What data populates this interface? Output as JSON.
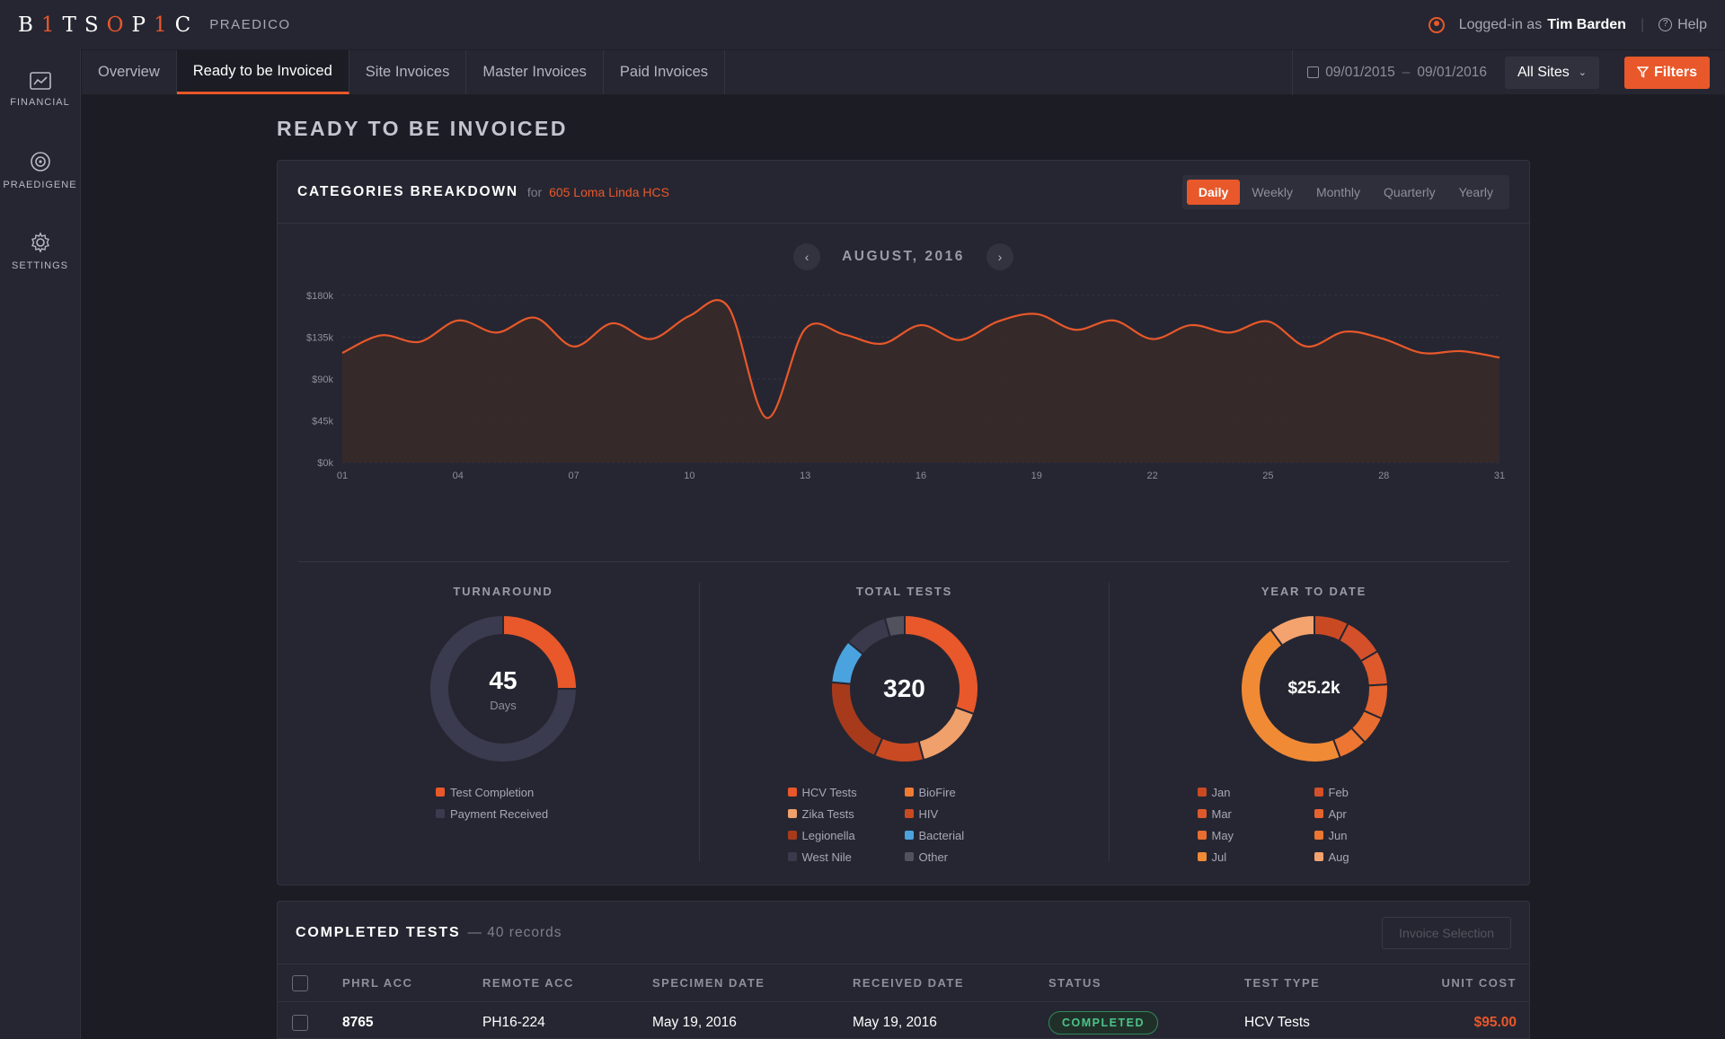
{
  "brand": {
    "logo_pre": "B",
    "logo_i1": "1",
    "logo_mid": "TS",
    "logo_o": "O",
    "logo_p": "P",
    "logo_i2": "1",
    "logo_post": "C",
    "product": "PRAEDICO"
  },
  "user": {
    "prefix": "Logged-in as",
    "name": "Tim Barden",
    "help": "Help"
  },
  "sidebar": {
    "items": [
      {
        "label": "FINANCIAL",
        "icon": "chart-icon"
      },
      {
        "label": "PRAEDIGENE",
        "icon": "target-icon"
      },
      {
        "label": "SETTINGS",
        "icon": "gear-icon"
      }
    ]
  },
  "tabs": [
    {
      "label": "Overview"
    },
    {
      "label": "Ready to be Invoiced",
      "active": true
    },
    {
      "label": "Site Invoices"
    },
    {
      "label": "Master Invoices"
    },
    {
      "label": "Paid Invoices"
    }
  ],
  "daterange": {
    "from": "09/01/2015",
    "sep": "–",
    "to": "09/01/2016"
  },
  "site_select": "All Sites",
  "filters_label": "Filters",
  "page_title": "READY TO BE INVOICED",
  "breakdown": {
    "title": "CATEGORIES BREAKDOWN",
    "for_label": "for",
    "location": "605 Loma Linda HCS",
    "periods": [
      "Daily",
      "Weekly",
      "Monthly",
      "Quarterly",
      "Yearly"
    ],
    "active_period": "Daily",
    "month": "AUGUST, 2016"
  },
  "chart_data": [
    {
      "type": "area",
      "x": [
        "01",
        "02",
        "03",
        "04",
        "05",
        "06",
        "07",
        "08",
        "09",
        "10",
        "11",
        "12",
        "13",
        "14",
        "15",
        "16",
        "17",
        "18",
        "19",
        "20",
        "21",
        "22",
        "23",
        "24",
        "25",
        "26",
        "27",
        "28",
        "29",
        "30",
        "31"
      ],
      "values": [
        118,
        137,
        130,
        153,
        140,
        156,
        125,
        150,
        133,
        158,
        168,
        48,
        144,
        138,
        128,
        148,
        132,
        152,
        160,
        143,
        153,
        133,
        148,
        140,
        152,
        125,
        141,
        133,
        118,
        120,
        113
      ],
      "y_ticks": [
        "$0k",
        "$45k",
        "$90k",
        "$135k",
        "$180k"
      ],
      "x_ticks": [
        "01",
        "04",
        "07",
        "10",
        "13",
        "16",
        "19",
        "22",
        "25",
        "28",
        "31"
      ],
      "ylim": [
        0,
        180
      ],
      "grid": true,
      "colors": {
        "line": "#e8582a",
        "fill": "#3a2a28"
      }
    },
    {
      "type": "pie",
      "title": "TURNAROUND",
      "center_value": "45",
      "center_label": "Days",
      "categories": [
        "Test Completion",
        "Payment Received"
      ],
      "values": [
        25,
        75
      ],
      "colors": [
        "#e8582a",
        "#3b3b4f"
      ]
    },
    {
      "type": "pie",
      "title": "TOTAL TESTS",
      "center_value": "320",
      "categories": [
        "HCV Tests",
        "BioFire",
        "Zika Tests",
        "HIV",
        "Legionella",
        "Bacterial",
        "West Nile",
        "Other"
      ],
      "values": [
        70,
        0,
        35,
        25,
        45,
        22,
        22,
        10
      ],
      "colors": [
        "#e8582a",
        "#ef7b33",
        "#f0a06a",
        "#c94a22",
        "#a83a1c",
        "#4aa3df",
        "#3a3a4c",
        "#52525e"
      ]
    },
    {
      "type": "pie",
      "title": "YEAR TO DATE",
      "center_value": "$25.2k",
      "categories": [
        "Jan",
        "Feb",
        "Mar",
        "Apr",
        "May",
        "Jun",
        "Jul",
        "Aug"
      ],
      "values": [
        3,
        3.5,
        3,
        3,
        2.5,
        2.5,
        18,
        4
      ],
      "colors": [
        "#c94a22",
        "#d4502a",
        "#de5a2c",
        "#e5632e",
        "#e86d30",
        "#ec7632",
        "#f08a35",
        "#f4a36e"
      ]
    }
  ],
  "completed": {
    "title": "COMPLETED TESTS",
    "count": "— 40 records",
    "invoice_button": "Invoice Selection",
    "columns": [
      "PHRL ACC",
      "REMOTE ACC",
      "SPECIMEN DATE",
      "RECEIVED DATE",
      "STATUS",
      "TEST TYPE",
      "UNIT COST"
    ],
    "rows": [
      {
        "phrl": "8765",
        "remote": "PH16-224",
        "specimen": "May 19, 2016",
        "received": "May 19, 2016",
        "status": "COMPLETED",
        "type": "HCV Tests",
        "cost": "$95.00"
      }
    ]
  }
}
